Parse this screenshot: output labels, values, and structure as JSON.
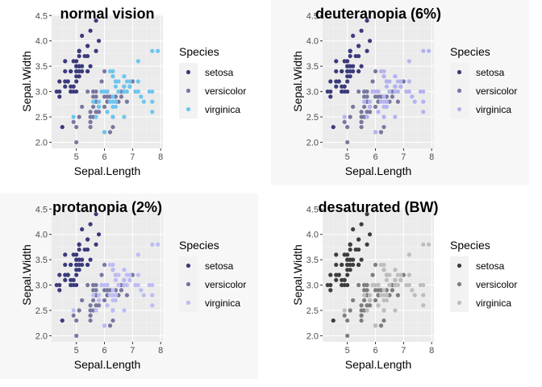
{
  "chart_data": [
    {
      "type": "scatter",
      "title": "normal vision",
      "xlabel": "Sepal.Length",
      "ylabel": "Sepal.Width",
      "xlim": [
        4.3,
        7.9
      ],
      "ylim": [
        2.0,
        4.4
      ],
      "x_ticks": [
        5,
        6,
        7,
        8
      ],
      "y_ticks": [
        2.0,
        2.5,
        3.0,
        3.5,
        4.0,
        4.5
      ],
      "grid": true,
      "legend": {
        "title": "Species",
        "position": "right"
      },
      "series": [
        {
          "name": "setosa",
          "color": "#3a3a7c"
        },
        {
          "name": "versicolor",
          "color": "#7777a0"
        },
        {
          "name": "virginica",
          "color": "#6cc6f0"
        }
      ]
    },
    {
      "type": "scatter",
      "title": "deuteranopia (6%)",
      "xlabel": "Sepal.Length",
      "ylabel": "Sepal.Width",
      "xlim": [
        4.3,
        7.9
      ],
      "ylim": [
        2.0,
        4.4
      ],
      "x_ticks": [
        5,
        6,
        7,
        8
      ],
      "y_ticks": [
        2.0,
        2.5,
        3.0,
        3.5,
        4.0,
        4.5
      ],
      "grid": true,
      "legend": {
        "title": "Species",
        "position": "right"
      },
      "series": [
        {
          "name": "setosa",
          "color": "#3a3a7c"
        },
        {
          "name": "versicolor",
          "color": "#7777a0"
        },
        {
          "name": "virginica",
          "color": "#b3b3f2"
        }
      ]
    },
    {
      "type": "scatter",
      "title": "protanopia (2%)",
      "xlabel": "Sepal.Length",
      "ylabel": "Sepal.Width",
      "xlim": [
        4.3,
        7.9
      ],
      "ylim": [
        2.0,
        4.4
      ],
      "x_ticks": [
        5,
        6,
        7,
        8
      ],
      "y_ticks": [
        2.0,
        2.5,
        3.0,
        3.5,
        4.0,
        4.5
      ],
      "grid": true,
      "legend": {
        "title": "Species",
        "position": "right"
      },
      "series": [
        {
          "name": "setosa",
          "color": "#3a3a7c"
        },
        {
          "name": "versicolor",
          "color": "#7777a0"
        },
        {
          "name": "virginica",
          "color": "#bcbcf5"
        }
      ]
    },
    {
      "type": "scatter",
      "title": "desaturated (BW)",
      "xlabel": "Sepal.Length",
      "ylabel": "Sepal.Width",
      "xlim": [
        4.3,
        7.9
      ],
      "ylim": [
        2.0,
        4.4
      ],
      "x_ticks": [
        5,
        6,
        7,
        8
      ],
      "y_ticks": [
        2.0,
        2.5,
        3.0,
        3.5,
        4.0,
        4.5
      ],
      "grid": true,
      "legend": {
        "title": "Species",
        "position": "right"
      },
      "series": [
        {
          "name": "setosa",
          "color": "#3d3d3d"
        },
        {
          "name": "versicolor",
          "color": "#7d7d7d"
        },
        {
          "name": "virginica",
          "color": "#bdbdbd"
        }
      ]
    }
  ],
  "iris": {
    "setosa": [
      [
        5.1,
        3.5
      ],
      [
        4.9,
        3.0
      ],
      [
        4.7,
        3.2
      ],
      [
        4.6,
        3.1
      ],
      [
        5.0,
        3.6
      ],
      [
        5.4,
        3.9
      ],
      [
        4.6,
        3.4
      ],
      [
        5.0,
        3.4
      ],
      [
        4.4,
        2.9
      ],
      [
        4.9,
        3.1
      ],
      [
        5.4,
        3.7
      ],
      [
        4.8,
        3.4
      ],
      [
        4.8,
        3.0
      ],
      [
        4.3,
        3.0
      ],
      [
        5.8,
        4.0
      ],
      [
        5.7,
        4.4
      ],
      [
        5.4,
        3.9
      ],
      [
        5.1,
        3.5
      ],
      [
        5.7,
        3.8
      ],
      [
        5.1,
        3.8
      ],
      [
        5.4,
        3.4
      ],
      [
        5.1,
        3.7
      ],
      [
        4.6,
        3.6
      ],
      [
        5.1,
        3.3
      ],
      [
        4.8,
        3.4
      ],
      [
        5.0,
        3.0
      ],
      [
        5.0,
        3.4
      ],
      [
        5.2,
        3.5
      ],
      [
        5.2,
        3.4
      ],
      [
        4.7,
        3.2
      ],
      [
        4.8,
        3.1
      ],
      [
        5.4,
        3.4
      ],
      [
        5.2,
        4.1
      ],
      [
        5.5,
        4.2
      ],
      [
        4.9,
        3.1
      ],
      [
        5.0,
        3.2
      ],
      [
        5.5,
        3.5
      ],
      [
        4.9,
        3.6
      ],
      [
        4.4,
        3.0
      ],
      [
        5.1,
        3.4
      ],
      [
        5.0,
        3.5
      ],
      [
        4.5,
        2.3
      ],
      [
        4.4,
        3.2
      ],
      [
        5.0,
        3.5
      ],
      [
        5.1,
        3.8
      ],
      [
        4.8,
        3.0
      ],
      [
        5.1,
        3.8
      ],
      [
        4.6,
        3.2
      ],
      [
        5.3,
        3.7
      ],
      [
        5.0,
        3.3
      ]
    ],
    "versicolor": [
      [
        7.0,
        3.2
      ],
      [
        6.4,
        3.2
      ],
      [
        6.9,
        3.1
      ],
      [
        5.5,
        2.3
      ],
      [
        6.5,
        2.8
      ],
      [
        5.7,
        2.8
      ],
      [
        6.3,
        3.3
      ],
      [
        4.9,
        2.4
      ],
      [
        6.6,
        2.9
      ],
      [
        5.2,
        2.7
      ],
      [
        5.0,
        2.0
      ],
      [
        5.9,
        3.0
      ],
      [
        6.0,
        2.2
      ],
      [
        6.1,
        2.9
      ],
      [
        5.6,
        2.9
      ],
      [
        6.7,
        3.1
      ],
      [
        5.6,
        3.0
      ],
      [
        5.8,
        2.7
      ],
      [
        6.2,
        2.2
      ],
      [
        5.6,
        2.5
      ],
      [
        5.9,
        3.2
      ],
      [
        6.1,
        2.8
      ],
      [
        6.3,
        2.5
      ],
      [
        6.1,
        2.8
      ],
      [
        6.4,
        2.9
      ],
      [
        6.6,
        3.0
      ],
      [
        6.8,
        2.8
      ],
      [
        6.7,
        3.0
      ],
      [
        6.0,
        2.9
      ],
      [
        5.7,
        2.6
      ],
      [
        5.5,
        2.4
      ],
      [
        5.5,
        2.4
      ],
      [
        5.8,
        2.7
      ],
      [
        6.0,
        2.7
      ],
      [
        5.4,
        3.0
      ],
      [
        6.0,
        3.4
      ],
      [
        6.7,
        3.1
      ],
      [
        6.3,
        2.3
      ],
      [
        5.6,
        3.0
      ],
      [
        5.5,
        2.5
      ],
      [
        5.5,
        2.6
      ],
      [
        6.1,
        3.0
      ],
      [
        5.8,
        2.6
      ],
      [
        5.0,
        2.3
      ],
      [
        5.6,
        2.7
      ],
      [
        5.7,
        3.0
      ],
      [
        5.7,
        2.9
      ],
      [
        6.2,
        2.9
      ],
      [
        5.1,
        2.5
      ],
      [
        5.7,
        2.8
      ]
    ],
    "virginica": [
      [
        6.3,
        3.3
      ],
      [
        5.8,
        2.7
      ],
      [
        7.1,
        3.0
      ],
      [
        6.3,
        2.9
      ],
      [
        6.5,
        3.0
      ],
      [
        7.6,
        3.0
      ],
      [
        4.9,
        2.5
      ],
      [
        7.3,
        2.9
      ],
      [
        6.7,
        2.5
      ],
      [
        7.2,
        3.6
      ],
      [
        6.5,
        3.2
      ],
      [
        6.4,
        2.7
      ],
      [
        6.8,
        3.0
      ],
      [
        5.7,
        2.5
      ],
      [
        5.8,
        2.8
      ],
      [
        6.4,
        3.2
      ],
      [
        6.5,
        3.0
      ],
      [
        7.7,
        3.8
      ],
      [
        7.7,
        2.6
      ],
      [
        6.0,
        2.2
      ],
      [
        6.9,
        3.2
      ],
      [
        5.6,
        2.8
      ],
      [
        7.7,
        2.8
      ],
      [
        6.3,
        2.7
      ],
      [
        6.7,
        3.3
      ],
      [
        7.2,
        3.2
      ],
      [
        6.2,
        2.8
      ],
      [
        6.1,
        3.0
      ],
      [
        6.4,
        2.8
      ],
      [
        7.2,
        3.0
      ],
      [
        7.4,
        2.8
      ],
      [
        7.9,
        3.8
      ],
      [
        6.4,
        2.8
      ],
      [
        6.3,
        2.8
      ],
      [
        6.1,
        2.6
      ],
      [
        7.7,
        3.0
      ],
      [
        6.3,
        3.4
      ],
      [
        6.4,
        3.1
      ],
      [
        6.0,
        3.0
      ],
      [
        6.9,
        3.1
      ],
      [
        6.7,
        3.1
      ],
      [
        6.9,
        3.1
      ],
      [
        5.8,
        2.7
      ],
      [
        6.8,
        3.2
      ],
      [
        6.7,
        3.3
      ],
      [
        6.7,
        3.0
      ],
      [
        6.3,
        2.5
      ],
      [
        6.5,
        3.0
      ],
      [
        6.2,
        3.4
      ],
      [
        5.9,
        3.0
      ]
    ]
  }
}
